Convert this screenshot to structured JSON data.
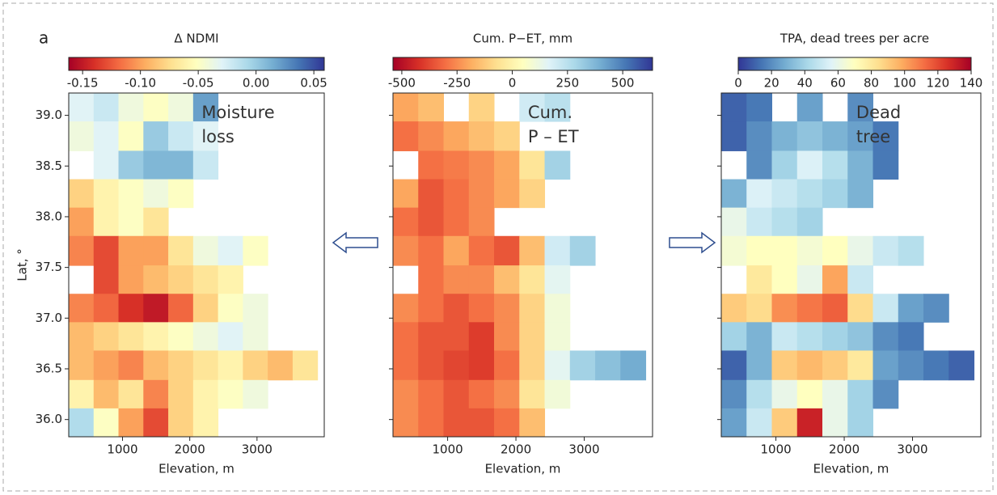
{
  "panel_label": "a",
  "chart_data": [
    {
      "type": "heatmap",
      "title": "Δ NDMI",
      "annotation": [
        "Moisture",
        "loss"
      ],
      "xlabel": "Elevation, m",
      "ylabel": "Lat, °",
      "xlim": [
        200,
        4000
      ],
      "ylim": [
        35.83,
        39.22
      ],
      "xticks": [
        1000,
        2000,
        3000
      ],
      "yticks": [
        {
          "value": 39,
          "label": "39.0"
        },
        38.5,
        {
          "value": 38,
          "label": "38.0"
        },
        37.5,
        {
          "value": 37,
          "label": "37.0"
        },
        36.5,
        {
          "value": 36,
          "label": "36.0"
        }
      ],
      "show_ytick_labels": true,
      "x_edges": [
        200,
        570,
        940,
        1310,
        1680,
        2050,
        2420,
        2790,
        3160,
        3530,
        3900
      ],
      "y_edges": [
        39.22,
        38.94,
        38.65,
        38.37,
        38.09,
        37.81,
        37.52,
        37.24,
        36.96,
        36.68,
        36.39,
        36.11,
        35.83
      ],
      "values": [
        [
          -0.03,
          -0.02,
          -0.04,
          -0.05,
          -0.04,
          0.02,
          null,
          null,
          null,
          null
        ],
        [
          -0.04,
          -0.03,
          -0.05,
          0.0,
          -0.02,
          -0.03,
          null,
          null,
          null,
          null
        ],
        [
          null,
          -0.03,
          0.0,
          0.01,
          0.01,
          -0.02,
          null,
          null,
          null,
          null
        ],
        [
          -0.08,
          -0.06,
          -0.05,
          -0.04,
          -0.05,
          null,
          null,
          null,
          null,
          null
        ],
        [
          -0.1,
          -0.06,
          -0.05,
          -0.07,
          null,
          null,
          null,
          null,
          null,
          null
        ],
        [
          -0.11,
          -0.13,
          -0.1,
          -0.1,
          -0.07,
          -0.04,
          -0.03,
          -0.05,
          null,
          null
        ],
        [
          null,
          -0.13,
          -0.1,
          -0.09,
          -0.08,
          -0.07,
          -0.06,
          null,
          null,
          null
        ],
        [
          -0.11,
          -0.12,
          -0.14,
          -0.15,
          -0.12,
          -0.08,
          -0.05,
          -0.04,
          null,
          null
        ],
        [
          -0.09,
          -0.08,
          -0.07,
          -0.06,
          -0.05,
          -0.04,
          -0.03,
          -0.04,
          null,
          null
        ],
        [
          -0.09,
          -0.1,
          -0.11,
          -0.09,
          -0.08,
          -0.07,
          -0.06,
          -0.08,
          -0.09,
          -0.07
        ],
        [
          -0.06,
          -0.09,
          -0.07,
          -0.11,
          -0.08,
          -0.06,
          -0.05,
          -0.04,
          null,
          null
        ],
        [
          -0.01,
          -0.05,
          -0.1,
          -0.13,
          -0.08,
          -0.06,
          null,
          null,
          null,
          null
        ]
      ],
      "colorbar_lim": [
        -0.162,
        0.059
      ],
      "colorbar_ticks": [
        -0.15,
        {
          "value": -0.1,
          "label": "-0.10"
        },
        -0.05,
        {
          "value": 0,
          "label": "0.00"
        },
        0.05
      ],
      "colormap": [
        "#a50026",
        "#d73027",
        "#f46d43",
        "#fdae61",
        "#fee090",
        "#ffffbf",
        "#e0f3f8",
        "#abd9e9",
        "#74add1",
        "#4575b4",
        "#313695"
      ]
    },
    {
      "type": "heatmap",
      "title": "Cum. P−ET, mm",
      "annotation": [
        "Cum.",
        "P – ET"
      ],
      "xlabel": "Elevation, m",
      "xlim": [
        200,
        4000
      ],
      "ylim": [
        35.83,
        39.22
      ],
      "xticks": [
        1000,
        2000,
        3000
      ],
      "yticks": [
        39,
        38.5,
        38,
        37.5,
        37,
        36.5,
        36
      ],
      "show_ytick_labels": false,
      "x_edges": [
        200,
        570,
        940,
        1310,
        1680,
        2050,
        2420,
        2790,
        3160,
        3530,
        3900
      ],
      "y_edges": [
        39.22,
        38.94,
        38.65,
        38.37,
        38.09,
        37.81,
        37.52,
        37.24,
        36.96,
        36.68,
        36.39,
        36.11,
        35.83
      ],
      "values": [
        [
          -200,
          -150,
          null,
          -100,
          null,
          200,
          250,
          null,
          null,
          null
        ],
        [
          -300,
          -250,
          -200,
          -150,
          -100,
          null,
          null,
          null,
          null,
          null
        ],
        [
          null,
          -300,
          -280,
          -250,
          -200,
          -50,
          300,
          null,
          null,
          null
        ],
        [
          -200,
          -350,
          -300,
          -250,
          -200,
          -100,
          null,
          null,
          null,
          null
        ],
        [
          -300,
          -350,
          -300,
          -250,
          null,
          null,
          null,
          null,
          null,
          null
        ],
        [
          -250,
          -300,
          -200,
          -300,
          -350,
          -150,
          200,
          300,
          null,
          null
        ],
        [
          null,
          -300,
          -250,
          -250,
          -150,
          -50,
          150,
          null,
          null,
          null
        ],
        [
          -250,
          -300,
          -350,
          -300,
          -250,
          -100,
          100,
          null,
          null,
          null
        ],
        [
          -300,
          -350,
          -350,
          -400,
          -250,
          -100,
          100,
          null,
          null,
          null
        ],
        [
          -300,
          -350,
          -380,
          -400,
          -300,
          -100,
          150,
          300,
          350,
          400
        ],
        [
          -250,
          -300,
          -350,
          -300,
          -250,
          -50,
          100,
          null,
          null,
          null
        ],
        [
          -250,
          -300,
          -350,
          -350,
          -300,
          -150,
          null,
          null,
          null,
          null
        ]
      ],
      "colorbar_lim": [
        -540,
        635
      ],
      "colorbar_ticks": [
        -500,
        -250,
        0,
        250,
        500
      ],
      "colormap": [
        "#a50026",
        "#d73027",
        "#f46d43",
        "#fdae61",
        "#fee090",
        "#ffffbf",
        "#e0f3f8",
        "#abd9e9",
        "#74add1",
        "#4575b4",
        "#313695"
      ]
    },
    {
      "type": "heatmap",
      "title": "TPA, dead trees per acre",
      "annotation": [
        "Dead",
        "tree"
      ],
      "xlabel": "Elevation, m",
      "xlim": [
        200,
        4000
      ],
      "ylim": [
        35.83,
        39.22
      ],
      "xticks": [
        1000,
        2000,
        3000
      ],
      "yticks": [
        39,
        38.5,
        38,
        37.5,
        37,
        36.5,
        36
      ],
      "show_ytick_labels": false,
      "x_edges": [
        200,
        570,
        940,
        1310,
        1680,
        2050,
        2420,
        2790,
        3160,
        3530,
        3900
      ],
      "y_edges": [
        39.22,
        38.94,
        38.65,
        38.37,
        38.09,
        37.81,
        37.52,
        37.24,
        36.96,
        36.68,
        36.39,
        36.11,
        35.83
      ],
      "values": [
        [
          10,
          15,
          null,
          25,
          null,
          20,
          null,
          null,
          null,
          null
        ],
        [
          10,
          20,
          30,
          35,
          30,
          25,
          15,
          null,
          null,
          null
        ],
        [
          null,
          20,
          40,
          55,
          45,
          30,
          15,
          null,
          null,
          null
        ],
        [
          30,
          55,
          50,
          45,
          40,
          30,
          null,
          null,
          null,
          null
        ],
        [
          60,
          50,
          45,
          40,
          null,
          null,
          null,
          null,
          null,
          null
        ],
        [
          65,
          70,
          70,
          65,
          70,
          60,
          50,
          45,
          null,
          null
        ],
        [
          null,
          80,
          70,
          60,
          100,
          50,
          null,
          null,
          null,
          null
        ],
        [
          90,
          85,
          105,
          110,
          115,
          85,
          50,
          25,
          20,
          null
        ],
        [
          40,
          30,
          50,
          45,
          40,
          35,
          20,
          15,
          null,
          null
        ],
        [
          10,
          30,
          90,
          95,
          90,
          80,
          25,
          20,
          15,
          10
        ],
        [
          20,
          45,
          60,
          70,
          60,
          40,
          20,
          null,
          null,
          null
        ],
        [
          25,
          50,
          90,
          130,
          60,
          40,
          null,
          null,
          null,
          null
        ]
      ],
      "colorbar_lim": [
        0,
        140
      ],
      "colorbar_ticks": [
        0,
        20,
        40,
        60,
        80,
        100,
        120,
        140
      ],
      "colormap": [
        "#313695",
        "#4575b4",
        "#74add1",
        "#abd9e9",
        "#e0f3f8",
        "#ffffbf",
        "#fee090",
        "#fdae61",
        "#f46d43",
        "#d73027",
        "#a50026"
      ]
    }
  ]
}
